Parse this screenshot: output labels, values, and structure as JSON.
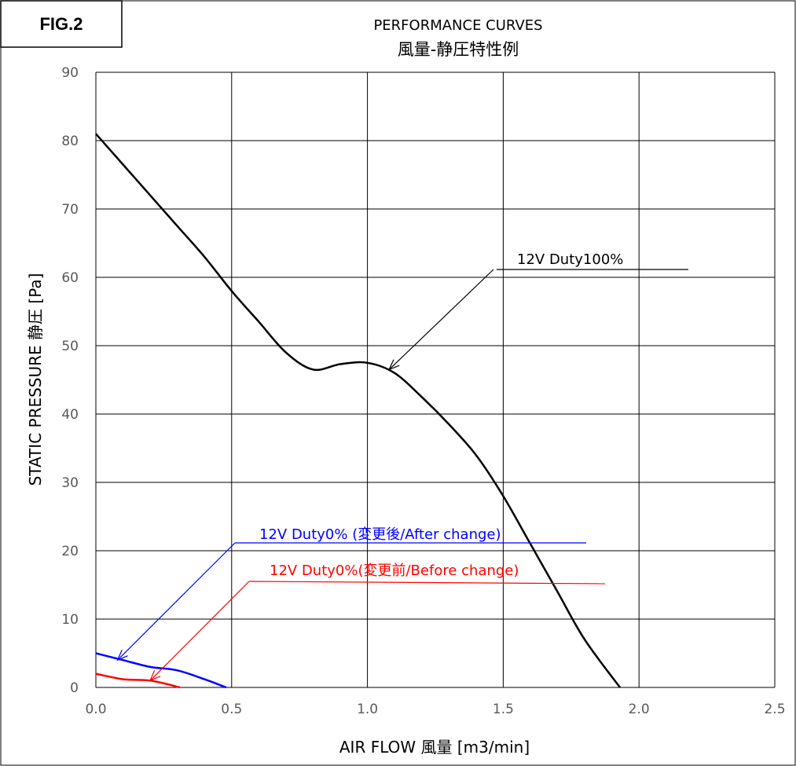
{
  "figure_label": "FIG.2",
  "chart_data": {
    "type": "line",
    "title": "PERFORMANCE CURVES",
    "subtitle": "風量-静圧特性例",
    "xlabel": "AIR FLOW 風量 [m3/min]",
    "ylabel": "STATIC PRESSURE 静圧 [Pa]",
    "xlim": [
      0,
      2.5
    ],
    "ylim": [
      0,
      90
    ],
    "xticks": [
      "0.0",
      "0.5",
      "1.0",
      "1.5",
      "2.0",
      "2.5"
    ],
    "yticks": [
      "0",
      "10",
      "20",
      "30",
      "40",
      "50",
      "60",
      "70",
      "80",
      "90"
    ],
    "grid": true,
    "series": [
      {
        "name": "12V Duty100%",
        "color": "#000000",
        "x": [
          0,
          0.1,
          0.2,
          0.3,
          0.4,
          0.5,
          0.6,
          0.7,
          0.8,
          0.9,
          1.0,
          1.1,
          1.2,
          1.3,
          1.4,
          1.5,
          1.6,
          1.7,
          1.8,
          1.93
        ],
        "y": [
          81,
          76.5,
          72,
          67.5,
          63,
          58,
          53.5,
          49,
          46.5,
          47.3,
          47.5,
          46,
          42.5,
          38.5,
          34,
          28,
          21,
          14,
          7,
          0
        ]
      },
      {
        "name": "12V Duty0% (変更後/After change)",
        "color": "#0000ff",
        "x": [
          0,
          0.1,
          0.2,
          0.3,
          0.4,
          0.48
        ],
        "y": [
          5,
          4,
          3,
          2.5,
          1.2,
          0
        ]
      },
      {
        "name": "12V Duty0%(変更前/Before change)",
        "color": "#ff0000",
        "x": [
          0,
          0.1,
          0.2,
          0.31
        ],
        "y": [
          2,
          1.2,
          1,
          0
        ]
      }
    ],
    "annotations": [
      {
        "text": "12V Duty100%",
        "color": "#000000",
        "target": [
          1.08,
          46.5
        ]
      },
      {
        "text": "12V Duty0% (変更後/After change)",
        "color": "#0000ff",
        "target": [
          0.08,
          4.0
        ]
      },
      {
        "text": "12V Duty0%(変更前/Before change)",
        "color": "#ff0000",
        "target": [
          0.2,
          1.0
        ]
      }
    ]
  }
}
